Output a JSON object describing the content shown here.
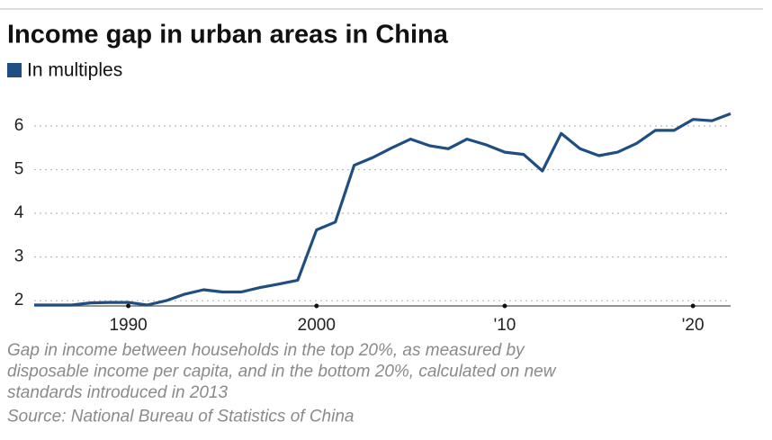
{
  "chart_data": {
    "type": "line",
    "title": "Income gap in urban areas in China",
    "series": [
      {
        "name": "In multiples",
        "color": "#1f4e82",
        "values": [
          1.9,
          1.9,
          1.9,
          1.95,
          1.96,
          1.96,
          1.9,
          2.0,
          2.15,
          2.25,
          2.2,
          2.2,
          2.3,
          2.38,
          2.47,
          3.62,
          3.8,
          5.1,
          5.28,
          5.5,
          5.7,
          5.55,
          5.48,
          5.7,
          5.57,
          5.4,
          5.35,
          4.97,
          5.83,
          5.48,
          5.32,
          5.4,
          5.6,
          5.9,
          5.9,
          6.15,
          6.12,
          6.28
        ]
      }
    ],
    "x": [
      1985,
      1986,
      1987,
      1988,
      1989,
      1990,
      1991,
      1992,
      1993,
      1994,
      1995,
      1996,
      1997,
      1998,
      1999,
      2000,
      2001,
      2002,
      2003,
      2004,
      2005,
      2006,
      2007,
      2008,
      2009,
      2010,
      2011,
      2012,
      2013,
      2014,
      2015,
      2016,
      2017,
      2018,
      2019,
      2020,
      2021,
      2022
    ],
    "xlim": [
      1985,
      2022
    ],
    "xticks": [
      1990,
      2000,
      {
        "value": 2010,
        "label": "'10"
      },
      {
        "value": 2020,
        "label": "'20"
      }
    ],
    "ylim": [
      1.88,
      6.4
    ],
    "yticks": [
      2,
      3,
      4,
      5,
      6
    ],
    "grid": true,
    "notes": [
      "Gap in income between households in the top 20%, as measured by",
      "disposable income per capita, and in the bottom 20%, calculated on new",
      "standards introduced in 2013",
      "Source: National Bureau of Statistics of China"
    ]
  }
}
